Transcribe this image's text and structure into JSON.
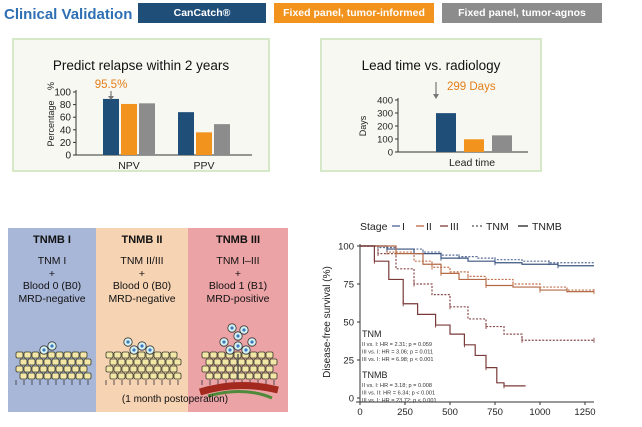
{
  "header": {
    "title": "Clinical Validation",
    "legend": [
      {
        "label": "CanCatch®",
        "color": "#1f4e79"
      },
      {
        "label": "Fixed panel, tumor-informed",
        "color": "#f2931e"
      },
      {
        "label": "Fixed panel, tumor-agnos",
        "color": "#8c8c8c"
      }
    ]
  },
  "panels": {
    "relapse_title": "Predict relapse within 2 years",
    "lead_title": "Lead time vs. radiology"
  },
  "tnmb": {
    "columns": [
      {
        "heading": "TNMB I",
        "lines": [
          "TNM I",
          "+",
          "Blood 0 (B0)",
          "MRD-negative"
        ],
        "bg": "#a8b6d8"
      },
      {
        "heading": "TNMB II",
        "lines": [
          "TNM II/III",
          "+",
          "Blood 0 (B0)",
          "MRD-negative"
        ],
        "bg": "#f6d3b3"
      },
      {
        "heading": "TNMB III",
        "lines": [
          "TNM I–III",
          "+",
          "Blood 1 (B1)",
          "MRD-positive"
        ],
        "bg": "#eba3a6"
      }
    ],
    "footnote": "(1 month postoperation)"
  },
  "chart_data": [
    {
      "type": "bar",
      "title": "Predict relapse within 2 years",
      "ylabel": "Percentage",
      "yunit": "%",
      "categories": [
        "NPV",
        "PPV"
      ],
      "ylim": [
        0,
        100
      ],
      "yticks": [
        "0",
        "20",
        "40",
        "60",
        "80",
        "100"
      ],
      "series": [
        {
          "name": "CanCatch®",
          "color": "#1f4e79",
          "values": [
            89,
            68
          ]
        },
        {
          "name": "Fixed panel, tumor-informed",
          "color": "#f2931e",
          "values": [
            81,
            36
          ]
        },
        {
          "name": "Fixed panel, tumor-agnos",
          "color": "#8c8c8c",
          "values": [
            82,
            49
          ]
        }
      ],
      "annotation": "95.5%"
    },
    {
      "type": "bar",
      "title": "Lead time vs. radiology",
      "ylabel": "Days",
      "xlabel": "Lead time",
      "categories": [
        "Lead time"
      ],
      "ylim": [
        0,
        400
      ],
      "yticks": [
        "0",
        "100",
        "200",
        "300",
        "400"
      ],
      "series": [
        {
          "name": "CanCatch®",
          "color": "#1f4e79",
          "values": [
            299
          ]
        },
        {
          "name": "Fixed panel, tumor-informed",
          "color": "#f2931e",
          "values": [
            98
          ]
        },
        {
          "name": "Fixed panel, tumor-agnos",
          "color": "#8c8c8c",
          "values": [
            128
          ]
        }
      ],
      "annotation": "299 Days"
    },
    {
      "type": "line",
      "ylabel": "Disease-free survival (%)",
      "xlim": [
        0,
        1300
      ],
      "ylim": [
        0,
        100
      ],
      "xticks": [
        "0",
        "250",
        "500",
        "750",
        "1000",
        "1250"
      ],
      "yticks": [
        "0",
        "25",
        "50",
        "75",
        "100"
      ],
      "legend": {
        "stage_label": "Stage",
        "stages": [
          "I",
          "II",
          "III"
        ],
        "tnm": "TNM",
        "tnmb": "TNMB"
      },
      "series": [
        {
          "name": "TNM I",
          "dash": true,
          "color": "#5b6f9a",
          "points": [
            [
              0,
              100
            ],
            [
              100,
              99
            ],
            [
              200,
              98
            ],
            [
              350,
              96
            ],
            [
              450,
              94
            ],
            [
              550,
              93
            ],
            [
              650,
              92
            ],
            [
              750,
              91
            ],
            [
              900,
              90
            ],
            [
              1050,
              89
            ],
            [
              1300,
              89
            ]
          ]
        },
        {
          "name": "TNM II",
          "dash": true,
          "color": "#c0724e",
          "points": [
            [
              0,
              100
            ],
            [
              150,
              96
            ],
            [
              300,
              90
            ],
            [
              400,
              86
            ],
            [
              500,
              83
            ],
            [
              600,
              80
            ],
            [
              700,
              78
            ],
            [
              850,
              75
            ],
            [
              1000,
              73
            ],
            [
              1150,
              71
            ],
            [
              1300,
              71
            ]
          ]
        },
        {
          "name": "TNM III",
          "dash": true,
          "color": "#8a4a4a",
          "points": [
            [
              0,
              100
            ],
            [
              100,
              95
            ],
            [
              200,
              85
            ],
            [
              300,
              75
            ],
            [
              400,
              68
            ],
            [
              500,
              60
            ],
            [
              600,
              52
            ],
            [
              700,
              47
            ],
            [
              800,
              42
            ],
            [
              900,
              38
            ],
            [
              1000,
              38
            ],
            [
              1300,
              38
            ]
          ]
        },
        {
          "name": "TNMB I",
          "dash": false,
          "color": "#3c557f",
          "points": [
            [
              0,
              100
            ],
            [
              150,
              98
            ],
            [
              300,
              95
            ],
            [
              450,
              92
            ],
            [
              600,
              90
            ],
            [
              750,
              89
            ],
            [
              900,
              88
            ],
            [
              1100,
              87
            ],
            [
              1300,
              87
            ]
          ]
        },
        {
          "name": "TNMB II",
          "dash": false,
          "color": "#b56a47",
          "points": [
            [
              0,
              100
            ],
            [
              200,
              95
            ],
            [
              350,
              88
            ],
            [
              450,
              82
            ],
            [
              550,
              78
            ],
            [
              700,
              74
            ],
            [
              850,
              73
            ],
            [
              1000,
              71
            ],
            [
              1150,
              70
            ],
            [
              1300,
              70
            ]
          ]
        },
        {
          "name": "TNMB III",
          "dash": false,
          "color": "#7a3a3a",
          "points": [
            [
              0,
              100
            ],
            [
              80,
              90
            ],
            [
              160,
              78
            ],
            [
              240,
              62
            ],
            [
              320,
              55
            ],
            [
              420,
              48
            ],
            [
              500,
              42
            ],
            [
              580,
              35
            ],
            [
              640,
              28
            ],
            [
              700,
              20
            ],
            [
              760,
              10
            ],
            [
              800,
              8
            ],
            [
              920,
              8
            ]
          ]
        }
      ],
      "annotations": {
        "tnm_title": "TNM",
        "tnm_lines": [
          "II vs. I: HR = 2.31; p = 0.059",
          "III vs. I: HR = 3.06; p = 0.011",
          "III vs. I: HR = 6.98; p < 0.001"
        ],
        "tnmb_title": "TNMB",
        "tnmb_lines": [
          "II vs. I: HR = 3.18; p = 0.008",
          "III vs. II: HR = 6.34; p < 0.001",
          "III vs. I: HR = 23.72; p < 0.001"
        ]
      }
    }
  ]
}
